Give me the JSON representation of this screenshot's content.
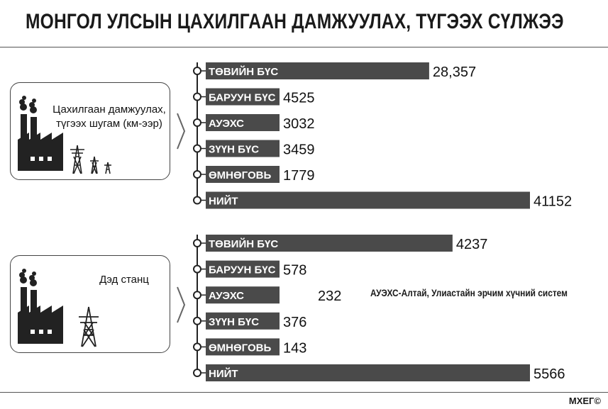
{
  "title": "МОНГОЛ УЛСЫН ЦАХИЛГААН ДАМЖУУЛАХ, ТҮГЭЭХ СҮЛЖЭЭ",
  "credit": "МХЕГ©",
  "panels": {
    "top_label": "Цахилгаан дамжуулах, түгээх шугам (км-ээр)",
    "bottom_label": "Дэд станц"
  },
  "colors": {
    "bar": "#4a4a4a",
    "accent": "#2b2b2b"
  },
  "chart_data": [
    {
      "type": "bar",
      "title": "Цахилгаан дамжуулах, түгээх шугам (км-ээр)",
      "categories": [
        "ТӨВИЙН БҮС",
        "БАРУУН БҮС",
        "АУЭХС",
        "ЗҮҮН БҮС",
        "ӨМНӨГОВЬ",
        "НИЙТ"
      ],
      "values": [
        28357,
        4525,
        3032,
        3459,
        1779,
        41152
      ],
      "value_labels": [
        "28,357",
        "4525",
        "3032",
        "3459",
        "1779",
        "41152"
      ],
      "orientation": "horizontal"
    },
    {
      "type": "bar",
      "title": "Дэд станц",
      "categories": [
        "ТӨВИЙН БҮС",
        "БАРУУН БҮС",
        "АУЭХС",
        "ЗҮҮН БҮС",
        "ӨМНӨГОВЬ",
        "НИЙТ"
      ],
      "values": [
        4237,
        578,
        232,
        376,
        143,
        5566
      ],
      "value_labels": [
        "4237",
        "578",
        "232",
        "376",
        "143",
        "5566"
      ],
      "orientation": "horizontal",
      "annotation": "АУЭХС-Алтай, Улиастайн эрчим хүчний систем"
    }
  ]
}
